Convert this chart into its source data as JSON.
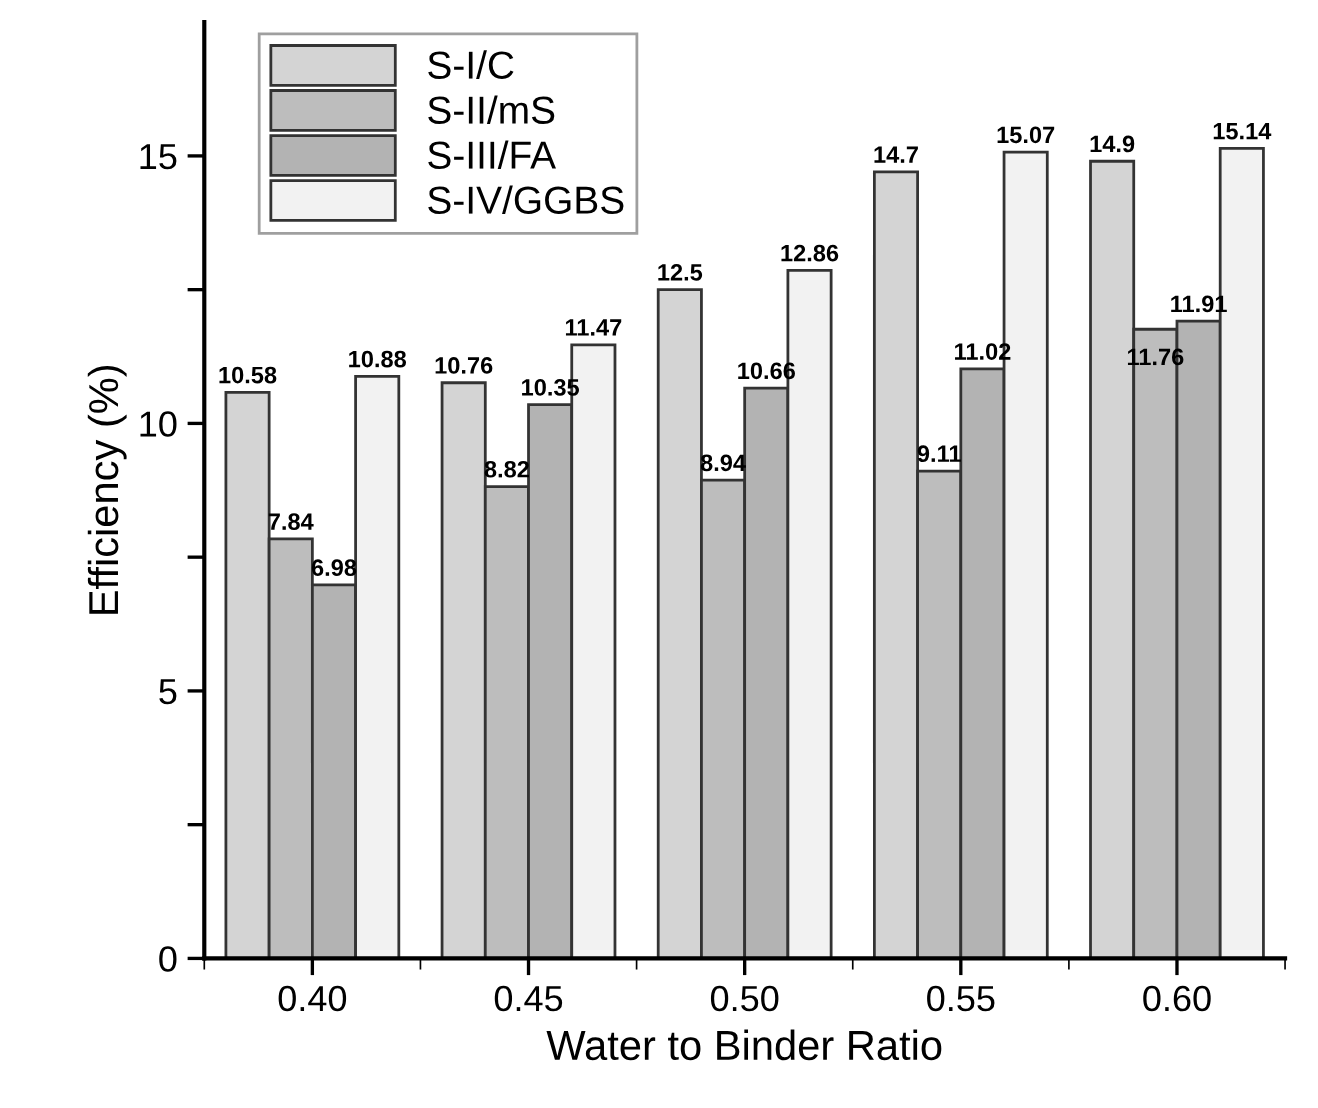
{
  "chart_data": {
    "type": "bar",
    "xlabel": "Water to Binder Ratio",
    "ylabel": "Efficiency (%)",
    "categories": [
      "0.40",
      "0.45",
      "0.50",
      "0.55",
      "0.60"
    ],
    "series": [
      {
        "name": "S-I/C",
        "color": "#d4d4d4",
        "values": [
          10.58,
          10.76,
          12.5,
          14.7,
          14.9
        ]
      },
      {
        "name": "S-II/mS",
        "color": "#bdbdbd",
        "values": [
          7.84,
          8.82,
          8.94,
          9.11,
          11.76
        ]
      },
      {
        "name": "S-III/FA",
        "color": "#b3b3b3",
        "values": [
          6.98,
          10.35,
          10.66,
          11.02,
          11.91
        ]
      },
      {
        "name": "S-IV/GGBS",
        "color": "#f2f2f2",
        "values": [
          10.88,
          11.47,
          12.86,
          15.07,
          15.14
        ]
      }
    ],
    "ylim": [
      0,
      17.5
    ],
    "yticks": [
      0,
      {
        "value": 2.5,
        "label": null
      },
      5,
      {
        "value": 7.5,
        "label": null
      },
      10,
      {
        "value": 12.5,
        "label": null
      },
      15
    ],
    "data_labels": true,
    "legend": "top left",
    "grid": false
  }
}
